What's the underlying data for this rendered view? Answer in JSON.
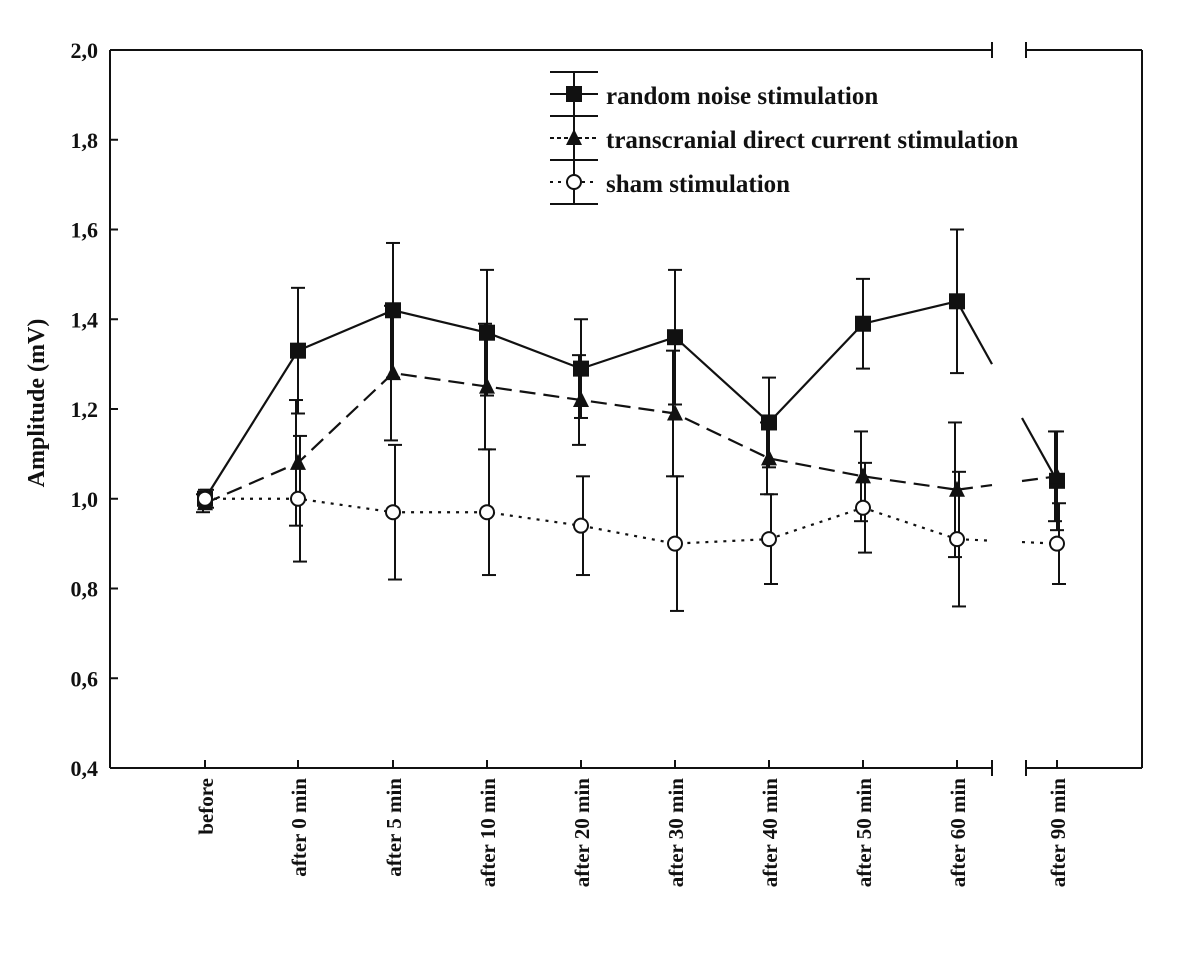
{
  "chart_data": {
    "type": "line",
    "title": "",
    "xlabel": "",
    "ylabel": "Amplitude (mV)",
    "ylim": [
      0.4,
      2.0
    ],
    "yticks": [
      "0,4",
      "0,6",
      "0,8",
      "1,0",
      "1,2",
      "1,4",
      "1,6",
      "1,8",
      "2,0"
    ],
    "ytick_values": [
      0.4,
      0.6,
      0.8,
      1.0,
      1.2,
      1.4,
      1.6,
      1.8,
      2.0
    ],
    "categories": [
      "before",
      "after 0 min",
      "after 5 min",
      "after 10 min",
      "after 20 min",
      "after 30 min",
      "after 40 min",
      "after 50 min",
      "after 60 min",
      "after 90 min"
    ],
    "axis_break": "between after 60 min and after 90 min",
    "grid": false,
    "legend_position": "top-right",
    "series": [
      {
        "name": "random noise stimulation",
        "marker": "square",
        "line": "solid",
        "values": [
          1.0,
          1.33,
          1.42,
          1.37,
          1.29,
          1.36,
          1.17,
          1.39,
          1.44,
          1.04
        ],
        "error": [
          0.02,
          0.14,
          0.15,
          0.14,
          0.11,
          0.15,
          0.1,
          0.1,
          0.16,
          0.11
        ]
      },
      {
        "name": "transcranial direct current stimulation",
        "marker": "triangle",
        "line": "dashed",
        "values": [
          0.99,
          1.08,
          1.28,
          1.25,
          1.22,
          1.19,
          1.09,
          1.05,
          1.02,
          1.05
        ],
        "error": [
          0.02,
          0.14,
          0.15,
          0.14,
          0.1,
          0.14,
          0.08,
          0.1,
          0.15,
          0.1
        ]
      },
      {
        "name": "sham stimulation",
        "marker": "open-circle",
        "line": "dotted",
        "values": [
          1.0,
          1.0,
          0.97,
          0.97,
          0.94,
          0.9,
          0.91,
          0.98,
          0.91,
          0.9
        ],
        "error": [
          0.02,
          0.14,
          0.15,
          0.14,
          0.11,
          0.15,
          0.1,
          0.1,
          0.15,
          0.09
        ]
      }
    ]
  }
}
